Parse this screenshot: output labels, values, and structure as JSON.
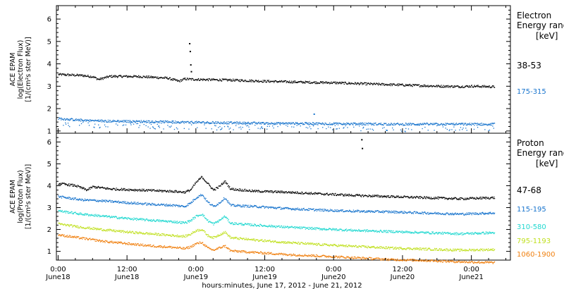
{
  "chart_data": {
    "type": "scatter",
    "xlabel": "hours:minutes, June 17, 2012 - June 21, 2012",
    "x_ticks": [
      {
        "time": "0:00",
        "date": "June18",
        "hours": 24
      },
      {
        "time": "12:00",
        "date": "June18",
        "hours": 36
      },
      {
        "time": "0:00",
        "date": "June19",
        "hours": 48
      },
      {
        "time": "12:00",
        "date": "June19",
        "hours": 60
      },
      {
        "time": "0:00",
        "date": "June20",
        "hours": 72
      },
      {
        "time": "12:00",
        "date": "June20",
        "hours": 84
      },
      {
        "time": "0:00",
        "date": "June21",
        "hours": 96
      }
    ],
    "xlim": [
      23.7,
      102.8
    ],
    "panels": [
      {
        "id": "electron",
        "ylabel_lines": [
          "ACE EPAM",
          "log(Electron Flux)",
          "[1/(cm²s ster MeV)]"
        ],
        "ylim": [
          0.9,
          6.6
        ],
        "yticks": [
          1,
          2,
          3,
          4,
          5,
          6
        ],
        "legend_title": [
          "Electron",
          "Energy ranges",
          "[keV]"
        ],
        "series": [
          {
            "name": "38-53",
            "color": "#000000",
            "points": [
              [
                24,
                3.52
              ],
              [
                28,
                3.48
              ],
              [
                30,
                3.42
              ],
              [
                31,
                3.3
              ],
              [
                33,
                3.44
              ],
              [
                38,
                3.43
              ],
              [
                43,
                3.36
              ],
              [
                45,
                3.22
              ],
              [
                46,
                3.32
              ],
              [
                48,
                3.3
              ],
              [
                54,
                3.27
              ],
              [
                60,
                3.22
              ],
              [
                66,
                3.18
              ],
              [
                72,
                3.15
              ],
              [
                78,
                3.1
              ],
              [
                84,
                3.05
              ],
              [
                90,
                3.0
              ],
              [
                94,
                2.98
              ],
              [
                96,
                3.0
              ],
              [
                100,
                2.97
              ]
            ],
            "spikes": [
              [
                46.8,
                4.9
              ],
              [
                46.9,
                4.55
              ],
              [
                47.0,
                3.95
              ],
              [
                47.1,
                3.65
              ]
            ]
          },
          {
            "name": "175-315",
            "color": "#1874cd",
            "points": [
              [
                24,
                1.55
              ],
              [
                28,
                1.48
              ],
              [
                32,
                1.44
              ],
              [
                38,
                1.42
              ],
              [
                44,
                1.4
              ],
              [
                48,
                1.38
              ],
              [
                54,
                1.36
              ],
              [
                60,
                1.34
              ],
              [
                66,
                1.33
              ],
              [
                72,
                1.32
              ],
              [
                78,
                1.31
              ],
              [
                84,
                1.3
              ],
              [
                90,
                1.3
              ],
              [
                96,
                1.3
              ],
              [
                100,
                1.3
              ]
            ],
            "spikes": [
              [
                68.5,
                1.75
              ]
            ]
          }
        ]
      },
      {
        "id": "proton",
        "ylabel_lines": [
          "ACE EPAM",
          "log(Proton Flux)",
          "[1/(cm²s ster MeV)]"
        ],
        "ylim": [
          0.6,
          6.4
        ],
        "yticks": [
          1,
          2,
          3,
          4,
          5,
          6
        ],
        "legend_title": [
          "Proton",
          "Energy ranges",
          "[keV]"
        ],
        "series": [
          {
            "name": "47-68",
            "color": "#000000",
            "points": [
              [
                24,
                4.1
              ],
              [
                27,
                4.0
              ],
              [
                29,
                3.8
              ],
              [
                30,
                3.95
              ],
              [
                33,
                3.85
              ],
              [
                36,
                3.82
              ],
              [
                40,
                3.78
              ],
              [
                44,
                3.74
              ],
              [
                46,
                3.7
              ],
              [
                47,
                3.8
              ],
              [
                48,
                4.15
              ],
              [
                49,
                4.4
              ],
              [
                50,
                4.1
              ],
              [
                51,
                3.8
              ],
              [
                52,
                3.95
              ],
              [
                53,
                4.2
              ],
              [
                54,
                3.85
              ],
              [
                58,
                3.75
              ],
              [
                64,
                3.7
              ],
              [
                70,
                3.62
              ],
              [
                76,
                3.55
              ],
              [
                82,
                3.5
              ],
              [
                88,
                3.45
              ],
              [
                94,
                3.4
              ],
              [
                100,
                3.45
              ]
            ],
            "spikes": [
              [
                76.8,
                6.1
              ],
              [
                76.9,
                5.7
              ]
            ]
          },
          {
            "name": "115-195",
            "color": "#1874cd",
            "points": [
              [
                24,
                3.5
              ],
              [
                28,
                3.35
              ],
              [
                32,
                3.3
              ],
              [
                36,
                3.22
              ],
              [
                40,
                3.15
              ],
              [
                44,
                3.1
              ],
              [
                46,
                3.05
              ],
              [
                47,
                3.2
              ],
              [
                48,
                3.45
              ],
              [
                49,
                3.6
              ],
              [
                50,
                3.25
              ],
              [
                51,
                3.05
              ],
              [
                52,
                3.2
              ],
              [
                53,
                3.45
              ],
              [
                54,
                3.1
              ],
              [
                58,
                3.05
              ],
              [
                64,
                2.95
              ],
              [
                70,
                2.88
              ],
              [
                76,
                2.83
              ],
              [
                82,
                2.8
              ],
              [
                88,
                2.75
              ],
              [
                94,
                2.7
              ],
              [
                100,
                2.75
              ]
            ],
            "spikes": []
          },
          {
            "name": "310-580",
            "color": "#20d8d0",
            "points": [
              [
                24,
                2.85
              ],
              [
                28,
                2.7
              ],
              [
                32,
                2.6
              ],
              [
                36,
                2.5
              ],
              [
                40,
                2.42
              ],
              [
                44,
                2.35
              ],
              [
                46,
                2.3
              ],
              [
                47,
                2.4
              ],
              [
                48,
                2.6
              ],
              [
                49,
                2.7
              ],
              [
                50,
                2.4
              ],
              [
                51,
                2.25
              ],
              [
                52,
                2.4
              ],
              [
                53,
                2.6
              ],
              [
                54,
                2.28
              ],
              [
                58,
                2.2
              ],
              [
                64,
                2.1
              ],
              [
                70,
                2.02
              ],
              [
                76,
                1.95
              ],
              [
                82,
                1.9
              ],
              [
                88,
                1.85
              ],
              [
                94,
                1.8
              ],
              [
                100,
                1.85
              ]
            ],
            "spikes": []
          },
          {
            "name": "795-1193",
            "color": "#c0e020",
            "points": [
              [
                24,
                2.25
              ],
              [
                28,
                2.1
              ],
              [
                32,
                1.98
              ],
              [
                36,
                1.88
              ],
              [
                40,
                1.8
              ],
              [
                44,
                1.72
              ],
              [
                46,
                1.68
              ],
              [
                47,
                1.78
              ],
              [
                48,
                1.95
              ],
              [
                49,
                2.0
              ],
              [
                50,
                1.72
              ],
              [
                51,
                1.62
              ],
              [
                52,
                1.75
              ],
              [
                53,
                1.88
              ],
              [
                54,
                1.62
              ],
              [
                58,
                1.52
              ],
              [
                64,
                1.4
              ],
              [
                70,
                1.3
              ],
              [
                76,
                1.22
              ],
              [
                82,
                1.15
              ],
              [
                88,
                1.1
              ],
              [
                94,
                1.05
              ],
              [
                100,
                1.08
              ]
            ],
            "spikes": []
          },
          {
            "name": "1060-1900",
            "color": "#f08010",
            "points": [
              [
                24,
                1.75
              ],
              [
                28,
                1.6
              ],
              [
                32,
                1.45
              ],
              [
                36,
                1.35
              ],
              [
                40,
                1.25
              ],
              [
                44,
                1.18
              ],
              [
                46,
                1.12
              ],
              [
                47,
                1.2
              ],
              [
                48,
                1.35
              ],
              [
                49,
                1.4
              ],
              [
                50,
                1.15
              ],
              [
                51,
                1.05
              ],
              [
                52,
                1.15
              ],
              [
                53,
                1.25
              ],
              [
                54,
                1.02
              ],
              [
                58,
                0.95
              ],
              [
                64,
                0.85
              ],
              [
                70,
                0.78
              ],
              [
                76,
                0.7
              ],
              [
                82,
                0.62
              ],
              [
                88,
                0.58
              ],
              [
                94,
                0.52
              ],
              [
                100,
                0.48
              ]
            ],
            "spikes": []
          }
        ]
      }
    ]
  }
}
